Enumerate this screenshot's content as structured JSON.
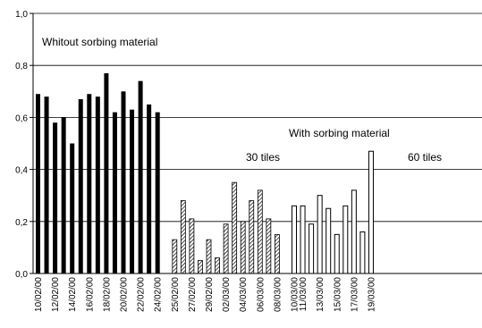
{
  "chart_data": {
    "type": "bar",
    "ylim": [
      0,
      1
    ],
    "yticks": [
      "0,0",
      "0,2",
      "0,4",
      "0,6",
      "0,8",
      "1,0"
    ],
    "grid": true,
    "series": [
      {
        "pattern": "solid",
        "color": "#000000",
        "points": [
          {
            "x": "10/02/00",
            "y": 0.69
          },
          {
            "x": null,
            "y": 0.68
          },
          {
            "x": "12/02/00",
            "y": 0.58
          },
          {
            "x": null,
            "y": 0.6
          },
          {
            "x": "14/02/00",
            "y": 0.5
          },
          {
            "x": null,
            "y": 0.67
          },
          {
            "x": "16/02/00",
            "y": 0.69
          },
          {
            "x": null,
            "y": 0.68
          },
          {
            "x": "18/02/00",
            "y": 0.77
          },
          {
            "x": null,
            "y": 0.62
          },
          {
            "x": "20/02/00",
            "y": 0.7
          },
          {
            "x": null,
            "y": 0.63
          },
          {
            "x": "22/02/00",
            "y": 0.74
          },
          {
            "x": null,
            "y": 0.65
          },
          {
            "x": "24/02/00",
            "y": 0.62
          }
        ]
      },
      {
        "pattern": "hatched",
        "color": "#000000",
        "points": [
          {
            "x": "25/02/00",
            "y": 0.13
          },
          {
            "x": null,
            "y": 0.28
          },
          {
            "x": "27/02/00",
            "y": 0.21
          },
          {
            "x": null,
            "y": 0.05
          },
          {
            "x": "29/02/00",
            "y": 0.13
          },
          {
            "x": null,
            "y": 0.06
          },
          {
            "x": "02/03/00",
            "y": 0.19
          },
          {
            "x": null,
            "y": 0.35
          },
          {
            "x": "04/03/00",
            "y": 0.2
          },
          {
            "x": null,
            "y": 0.28
          },
          {
            "x": "06/03/00",
            "y": 0.32
          },
          {
            "x": null,
            "y": 0.21
          },
          {
            "x": "08/03/00",
            "y": 0.15
          }
        ]
      },
      {
        "pattern": "hollow",
        "color": "#000000",
        "points": [
          {
            "x": "10/03/00",
            "y": 0.26
          },
          {
            "x": "11/03/00",
            "y": 0.26
          },
          {
            "x": null,
            "y": 0.19
          },
          {
            "x": "13/03/00",
            "y": 0.3
          },
          {
            "x": null,
            "y": 0.25
          },
          {
            "x": "15/03/00",
            "y": 0.15
          },
          {
            "x": null,
            "y": 0.26
          },
          {
            "x": "17/03/00",
            "y": 0.32
          },
          {
            "x": null,
            "y": 0.16
          },
          {
            "x": "19/03/00",
            "y": 0.47
          }
        ]
      }
    ],
    "annotations": {
      "without": "Whitout sorbing material",
      "with": "With sorbing material",
      "tiles30": "30 tiles",
      "tiles60": "60 tiles"
    }
  }
}
